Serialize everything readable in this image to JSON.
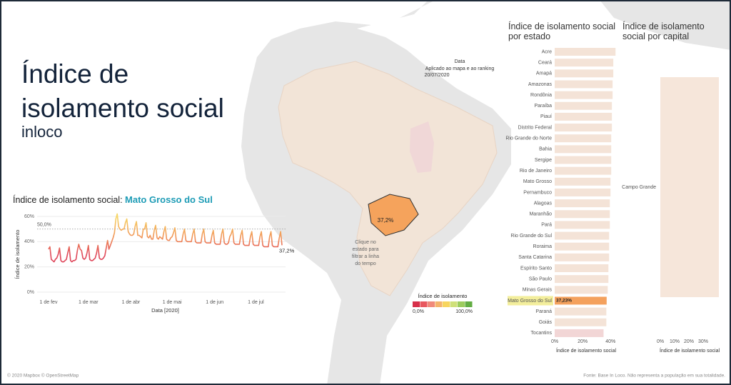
{
  "header": {
    "title": "Índice de isolamento social",
    "brand": "inloco"
  },
  "map": {
    "date_title": "Data",
    "date_note": "Aplicado ao mapa e ao ranking",
    "date": "20/07/2020",
    "selected_label": "37,2%",
    "click_note": [
      "Clique no",
      "estado para",
      "filtrar a linha",
      "do tempo"
    ],
    "legend_title": "Índice de isolamento",
    "legend_ticks": [
      {
        "value": 0,
        "label": "0,0%"
      },
      {
        "value": 100,
        "label": "100,0%"
      }
    ],
    "legend_colors": [
      "#d7304a",
      "#e8575e",
      "#f08a7a",
      "#f4b36a",
      "#f7d55e",
      "#cfe07a",
      "#9ccc5e",
      "#62ad43"
    ]
  },
  "chart_data": [
    {
      "type": "line",
      "title": "Índice de isolamento social:",
      "title_highlight": "Mato Grosso do Sul",
      "x_label": "Data [2020]",
      "y_label": "Índice de isolamento",
      "categories": [
        "1 de fev",
        null,
        null,
        null,
        null,
        null,
        null,
        null,
        null,
        null,
        null,
        null,
        null,
        null,
        null,
        null,
        null,
        null,
        null,
        null,
        null,
        null,
        null,
        null,
        null,
        null,
        null,
        null,
        null,
        "1 de mar",
        null,
        null,
        null,
        null,
        null,
        null,
        null,
        null,
        null,
        null,
        null,
        null,
        null,
        null,
        null,
        null,
        null,
        null,
        null,
        null,
        null,
        null,
        null,
        null,
        null,
        null,
        null,
        null,
        null,
        null,
        "1 de abr",
        null,
        null,
        null,
        null,
        null,
        null,
        null,
        null,
        null,
        null,
        null,
        null,
        null,
        null,
        null,
        null,
        null,
        null,
        null,
        null,
        null,
        null,
        null,
        null,
        null,
        null,
        null,
        null,
        null,
        "1 de mai",
        null,
        null,
        null,
        null,
        null,
        null,
        null,
        null,
        null,
        null,
        null,
        null,
        null,
        null,
        null,
        null,
        null,
        null,
        null,
        null,
        null,
        null,
        null,
        null,
        null,
        null,
        null,
        null,
        null,
        null,
        "1 de jun",
        null,
        null,
        null,
        null,
        null,
        null,
        null,
        null,
        null,
        null,
        null,
        null,
        null,
        null,
        null,
        null,
        null,
        null,
        null,
        null,
        null,
        null,
        null,
        null,
        null,
        null,
        null,
        null,
        null,
        "1 de jul",
        null,
        null,
        null,
        null,
        null,
        null,
        null,
        null,
        null,
        null,
        null,
        null,
        null,
        null,
        null,
        null,
        null,
        null,
        null
      ],
      "values": [
        34,
        36,
        26,
        25,
        24,
        26,
        27,
        30,
        35,
        25,
        24,
        24,
        25,
        26,
        31,
        36,
        25,
        24,
        25,
        25,
        26,
        33,
        38,
        34,
        33,
        27,
        26,
        27,
        31,
        37,
        26,
        25,
        25,
        26,
        27,
        31,
        37,
        27,
        26,
        26,
        27,
        29,
        35,
        41,
        34,
        37,
        40,
        43,
        47,
        58,
        62,
        52,
        50,
        49,
        50,
        50,
        55,
        58,
        48,
        46,
        45,
        45,
        46,
        52,
        56,
        45,
        45,
        44,
        43,
        50,
        50,
        55,
        44,
        43,
        45,
        42,
        42,
        49,
        53,
        43,
        42,
        44,
        43,
        42,
        48,
        52,
        42,
        41,
        41,
        43,
        44,
        47,
        51,
        41,
        40,
        40,
        40,
        40,
        46,
        50,
        41,
        40,
        40,
        40,
        40,
        46,
        50,
        40,
        39,
        39,
        39,
        39,
        46,
        50,
        40,
        39,
        39,
        39,
        39,
        45,
        49,
        39,
        38,
        38,
        38,
        38,
        46,
        50,
        39,
        38,
        38,
        39,
        44,
        46,
        50,
        39,
        38,
        38,
        38,
        38,
        45,
        49,
        38,
        37,
        37,
        37,
        37,
        44,
        48,
        38,
        37,
        37,
        37,
        37,
        44,
        48,
        37,
        36,
        36,
        36,
        36,
        44,
        48,
        37,
        36,
        36,
        36,
        36,
        43,
        48,
        37.2
      ],
      "value_labels": [
        null,
        null,
        null,
        null,
        null,
        null,
        null,
        null,
        null,
        null,
        null,
        null,
        null,
        null,
        null,
        null,
        null,
        null,
        null,
        null,
        null,
        null,
        null,
        null,
        null,
        null,
        null,
        null,
        null,
        null,
        null,
        null,
        null,
        null,
        null,
        null,
        null,
        null,
        null,
        null,
        null,
        null,
        null,
        null,
        null,
        null,
        null,
        null,
        null,
        null,
        null,
        null,
        null,
        null,
        null,
        null,
        null,
        null,
        null,
        null,
        null,
        null,
        null,
        null,
        null,
        null,
        null,
        null,
        null,
        null,
        null,
        null,
        null,
        null,
        null,
        null,
        null,
        null,
        null,
        null,
        null,
        null,
        null,
        null,
        null,
        null,
        null,
        null,
        null,
        null,
        null,
        null,
        null,
        null,
        null,
        null,
        null,
        null,
        null,
        null,
        null,
        null,
        null,
        null,
        null,
        null,
        null,
        null,
        null,
        null,
        null,
        null,
        null,
        null,
        null,
        null,
        null,
        null,
        null,
        null,
        null,
        null,
        null,
        null,
        null,
        null,
        null,
        null,
        null,
        null,
        null,
        null,
        null,
        null,
        null,
        null,
        null,
        null,
        null,
        null,
        null,
        null,
        null,
        null,
        null,
        null,
        null,
        null,
        null,
        null,
        null,
        null,
        null,
        null,
        null,
        null,
        null,
        null,
        null,
        null,
        null,
        null,
        null,
        null,
        null,
        null,
        null,
        null,
        null,
        null,
        "37,2%"
      ],
      "reference_line": {
        "value": 50,
        "label": "50,0%"
      },
      "ylim": [
        0,
        60
      ],
      "yticks": [
        {
          "value": 0,
          "label": "0%"
        },
        {
          "value": 20,
          "label": "20%"
        },
        {
          "value": 40,
          "label": "40%"
        },
        {
          "value": 60,
          "label": "60%"
        }
      ],
      "grid": true
    },
    {
      "type": "hbar",
      "title": "Índice de isolamento social por estado",
      "x_label": "Índice de isolamento social",
      "categories": [
        "Acre",
        "Ceará",
        "Amapá",
        "Amazonas",
        "Rondônia",
        "Paraíba",
        "Piauí",
        "Distrito Federal",
        "Rio Grande do Norte",
        "Bahia",
        "Sergipe",
        "Rio de Janeiro",
        "Mato Grosso",
        "Pernambuco",
        "Alagoas",
        "Maranhão",
        "Pará",
        "Rio Grande do Sul",
        "Roraima",
        "Santa Catarina",
        "Espírito Santo",
        "São Paulo",
        "Minas Gerais",
        "Mato Grosso do Sul",
        "Paraná",
        "Goiás",
        "Tocantins"
      ],
      "values": [
        43.6,
        42,
        42,
        41.5,
        41.5,
        41,
        41,
        41,
        40.5,
        40.5,
        40.5,
        40.5,
        40,
        40,
        39.5,
        39.5,
        39.5,
        39,
        39,
        39,
        38.5,
        38.5,
        38,
        37.23,
        37,
        37,
        35
      ],
      "value_labels": [
        null,
        null,
        null,
        null,
        null,
        null,
        null,
        null,
        null,
        null,
        null,
        null,
        null,
        null,
        null,
        null,
        null,
        null,
        null,
        null,
        null,
        null,
        null,
        "37,23%",
        null,
        null,
        null
      ],
      "colors": [
        "#f4e3d7",
        "#f4e3d7",
        "#f4e3d7",
        "#f4e3d7",
        "#f4e3d7",
        "#f4e3d7",
        "#f4e3d7",
        "#f4e3d7",
        "#f4e3d7",
        "#f4e3d7",
        "#f4e3d7",
        "#f4e3d7",
        "#f4e3d7",
        "#f4e3d7",
        "#f4e3d7",
        "#f4e3d7",
        "#f4e3d7",
        "#f4e3d7",
        "#f4e3d7",
        "#f4e3d7",
        "#f4e3d7",
        "#f4e3d7",
        "#f4e3d7",
        "#f4a15d",
        "#f4e3d7",
        "#f4e3d7",
        "#f2d6d6"
      ],
      "highlight_label_color": "#f3ee9c",
      "highlight": "Mato Grosso do Sul",
      "xlim": [
        0,
        45
      ],
      "xticks": [
        {
          "value": 0,
          "label": "0%"
        },
        {
          "value": 20,
          "label": "20%"
        },
        {
          "value": 40,
          "label": "40%"
        }
      ]
    },
    {
      "type": "hbar",
      "title": "Índice de isolamento social por capital",
      "x_label": "Índice de isolamento social",
      "categories": [
        "Campo Grande"
      ],
      "values": [
        41
      ],
      "colors": [
        "#f6e6da"
      ],
      "xlim": [
        0,
        41
      ],
      "xticks": [
        {
          "value": 0,
          "label": "0%"
        },
        {
          "value": 10,
          "label": "10%"
        },
        {
          "value": 20,
          "label": "20%"
        },
        {
          "value": 30,
          "label": "30%"
        }
      ]
    }
  ],
  "footer": {
    "credits": "© 2020 Mapbox © OpenStreetMap",
    "source": "Fonte: Base In Loco. Não representa a população em sua totalidade."
  }
}
